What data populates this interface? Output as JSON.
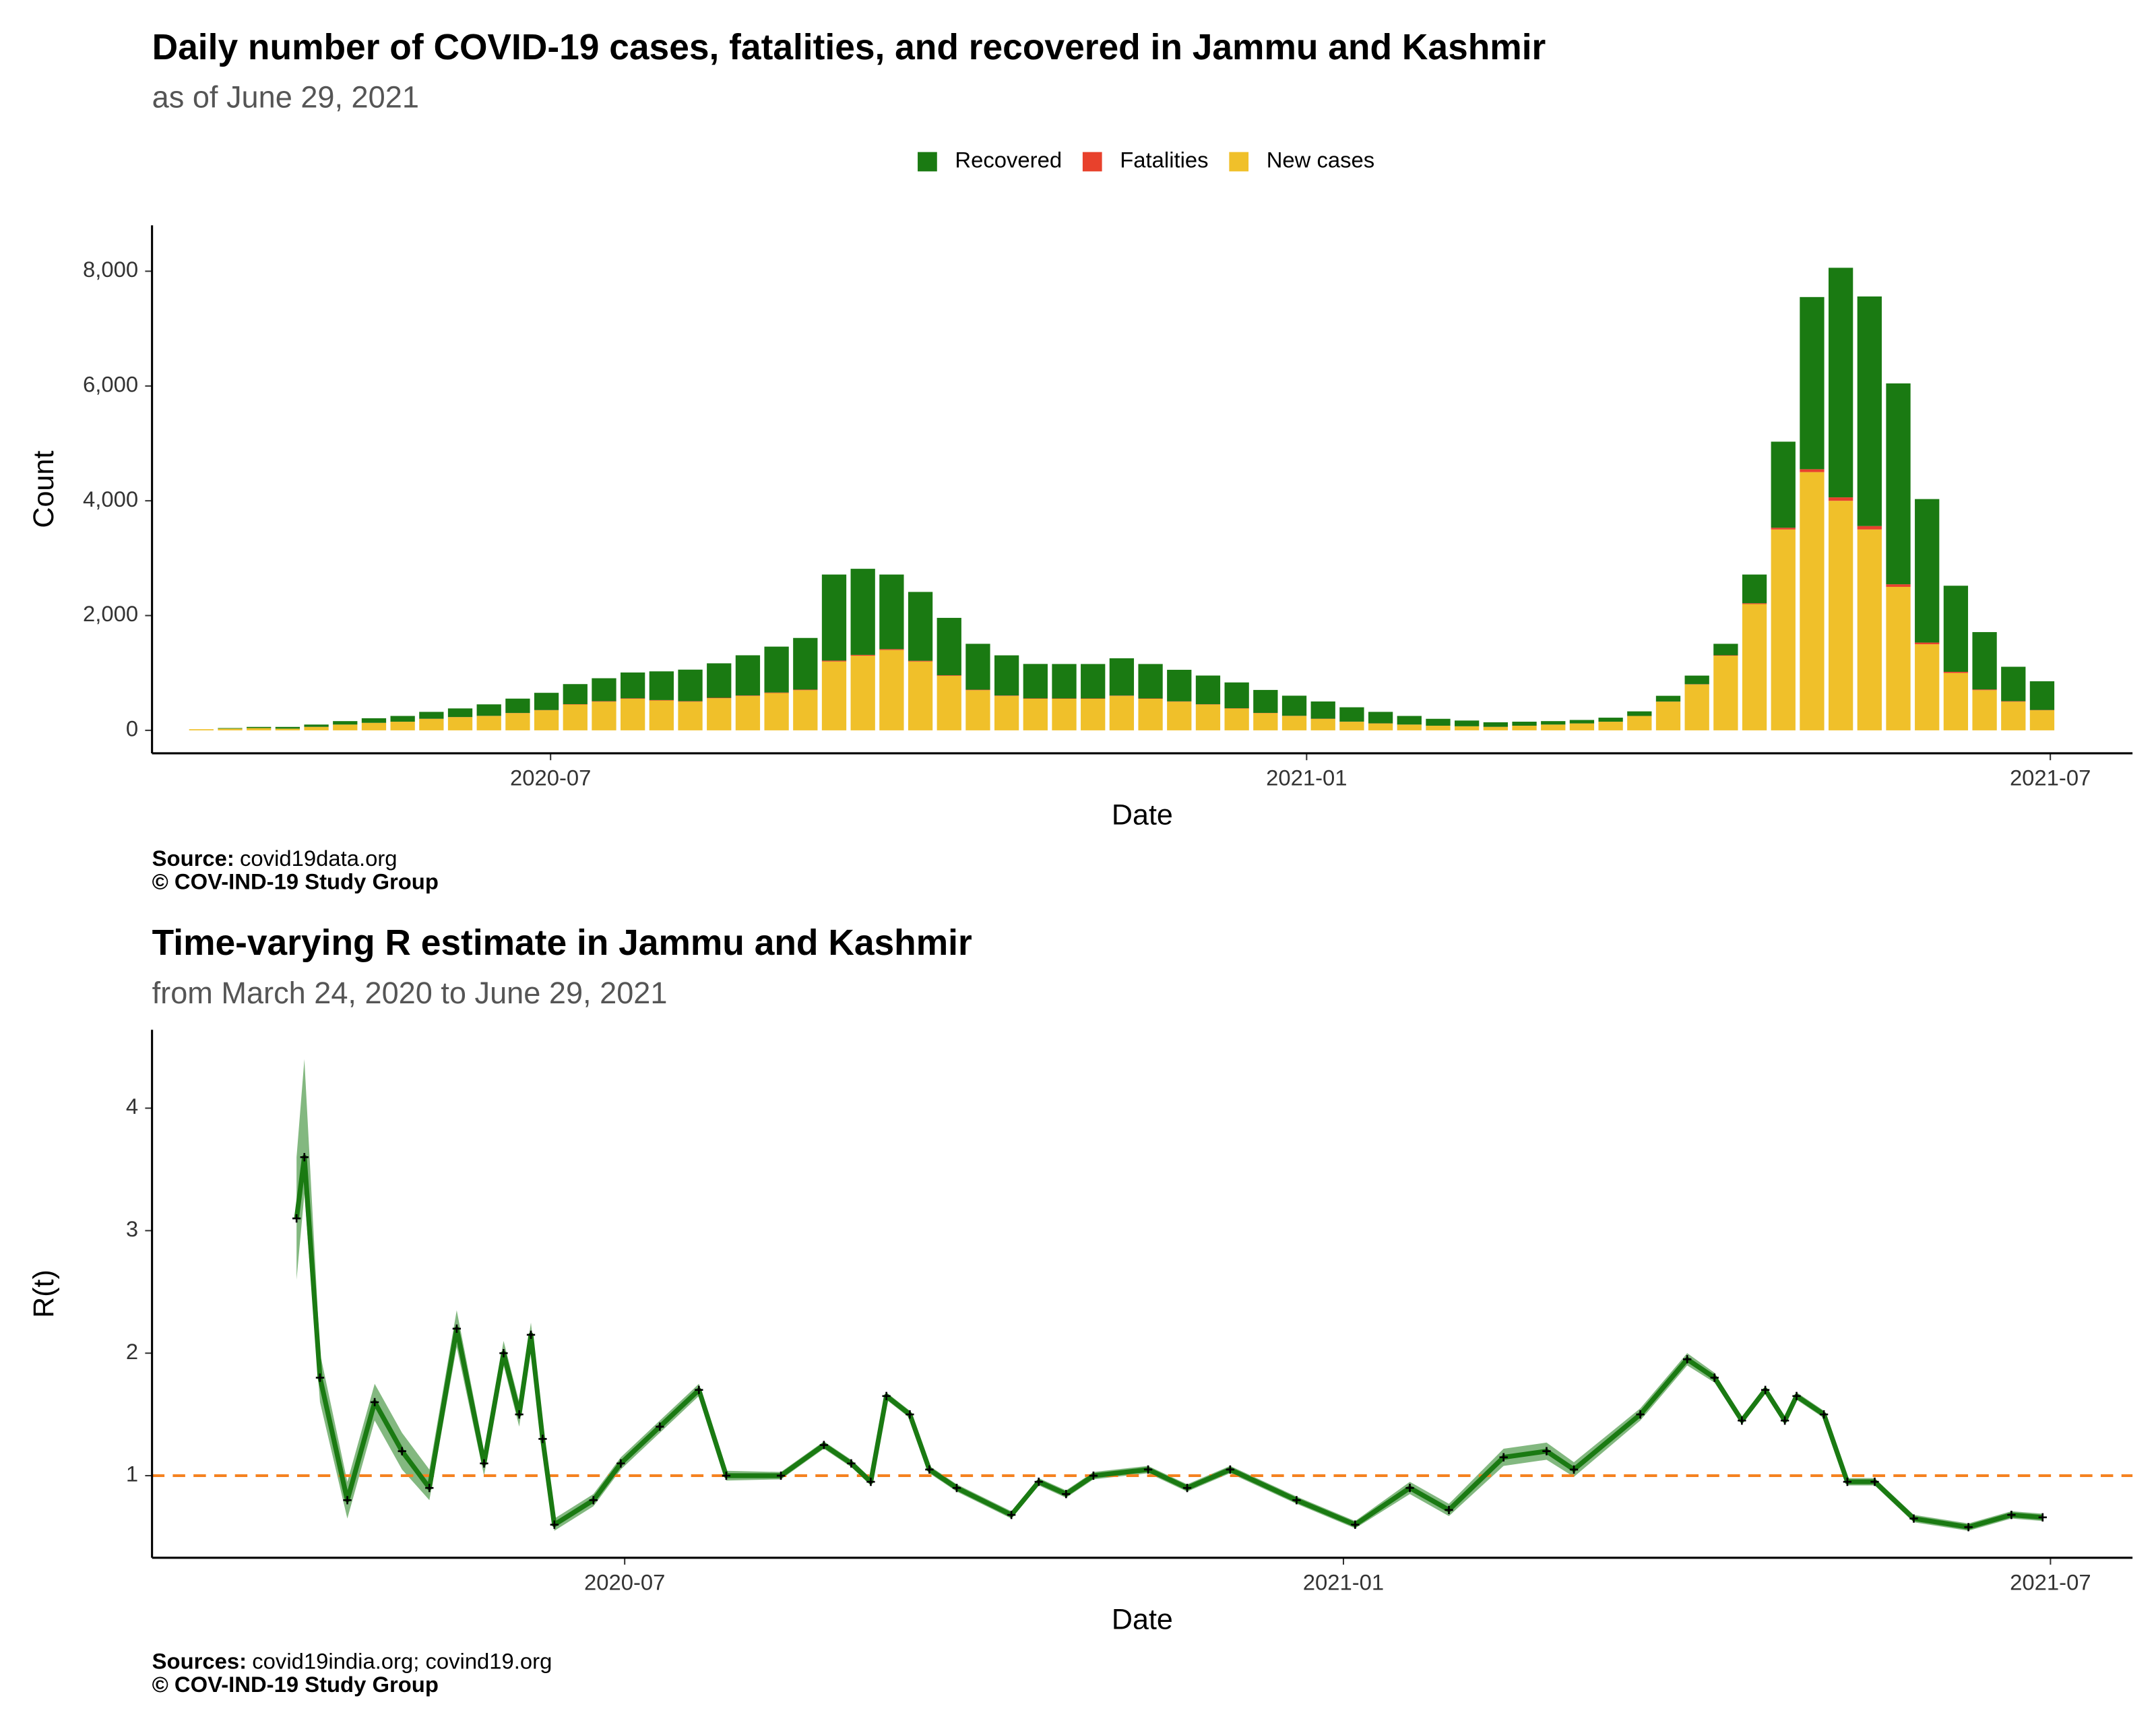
{
  "chart_data": [
    {
      "type": "bar",
      "title": "Daily number of COVID-19 cases, fatalities, and recovered in Jammu and Kashmir",
      "subtitle": "as of June 29, 2021",
      "x_label": "Date",
      "y_label": "Count",
      "source_label": "Source:",
      "source": "covid19data.org",
      "copyright": "© COV-IND-19 Study Group",
      "x": [
        "2020-04-07",
        "2020-04-14",
        "2020-04-21",
        "2020-04-28",
        "2020-05-05",
        "2020-05-12",
        "2020-05-19",
        "2020-05-26",
        "2020-06-02",
        "2020-06-09",
        "2020-06-16",
        "2020-06-23",
        "2020-06-30",
        "2020-07-07",
        "2020-07-14",
        "2020-07-21",
        "2020-07-28",
        "2020-08-04",
        "2020-08-11",
        "2020-08-18",
        "2020-08-25",
        "2020-09-01",
        "2020-09-08",
        "2020-09-15",
        "2020-09-22",
        "2020-09-29",
        "2020-10-06",
        "2020-10-13",
        "2020-10-20",
        "2020-10-27",
        "2020-11-03",
        "2020-11-10",
        "2020-11-17",
        "2020-11-24",
        "2020-12-01",
        "2020-12-08",
        "2020-12-15",
        "2020-12-22",
        "2020-12-29",
        "2021-01-05",
        "2021-01-12",
        "2021-01-19",
        "2021-01-26",
        "2021-02-02",
        "2021-02-09",
        "2021-02-16",
        "2021-02-23",
        "2021-03-02",
        "2021-03-09",
        "2021-03-16",
        "2021-03-23",
        "2021-03-30",
        "2021-04-06",
        "2021-04-13",
        "2021-04-20",
        "2021-04-27",
        "2021-05-04",
        "2021-05-11",
        "2021-05-18",
        "2021-05-25",
        "2021-06-01",
        "2021-06-08",
        "2021-06-15",
        "2021-06-22",
        "2021-06-29"
      ],
      "series": [
        {
          "name": "New cases",
          "color": "#f0c02a",
          "values": [
            20,
            30,
            40,
            30,
            60,
            100,
            130,
            150,
            200,
            230,
            250,
            300,
            350,
            450,
            500,
            550,
            520,
            500,
            560,
            600,
            650,
            700,
            1200,
            1300,
            1400,
            1200,
            950,
            700,
            600,
            550,
            550,
            550,
            600,
            550,
            500,
            450,
            380,
            300,
            250,
            200,
            150,
            120,
            100,
            80,
            70,
            60,
            80,
            100,
            120,
            150,
            250,
            500,
            800,
            1300,
            2200,
            3500,
            4500,
            4000,
            3500,
            2500,
            1500,
            1000,
            700,
            500,
            350
          ]
        },
        {
          "name": "Fatalities",
          "color": "#e8412c",
          "values": [
            0,
            0,
            0,
            0,
            1,
            1,
            1,
            1,
            2,
            2,
            3,
            3,
            4,
            6,
            8,
            8,
            8,
            8,
            8,
            8,
            9,
            10,
            15,
            15,
            15,
            12,
            10,
            8,
            7,
            7,
            6,
            6,
            6,
            6,
            5,
            5,
            5,
            4,
            4,
            3,
            2,
            2,
            1,
            1,
            1,
            1,
            1,
            1,
            1,
            1,
            1,
            2,
            4,
            8,
            15,
            30,
            50,
            60,
            60,
            45,
            30,
            20,
            12,
            8,
            5
          ]
        },
        {
          "name": "Recovered",
          "color": "#1a7a12",
          "values": [
            0,
            10,
            20,
            30,
            40,
            60,
            80,
            100,
            120,
            150,
            200,
            250,
            300,
            350,
            400,
            450,
            500,
            550,
            600,
            700,
            800,
            900,
            1500,
            1500,
            1300,
            1200,
            1000,
            800,
            700,
            600,
            600,
            600,
            650,
            600,
            550,
            500,
            450,
            400,
            350,
            300,
            250,
            200,
            150,
            120,
            100,
            80,
            70,
            60,
            60,
            70,
            80,
            100,
            150,
            200,
            500,
            1500,
            3000,
            4000,
            4000,
            3500,
            2500,
            1500,
            1000,
            600,
            500
          ]
        }
      ],
      "xlim": [
        "2020-03-26",
        "2021-07-21"
      ],
      "xticks": [
        {
          "value": "2020-07-01",
          "label": "2020-07"
        },
        {
          "value": "2021-01-01",
          "label": "2021-01"
        },
        {
          "value": "2021-07-01",
          "label": "2021-07"
        }
      ],
      "ylim": [
        -400,
        8800
      ],
      "yticks": [
        0,
        {
          "value": 2000,
          "label": "2,000"
        },
        {
          "value": 4000,
          "label": "4,000"
        },
        {
          "value": 6000,
          "label": "6,000"
        },
        {
          "value": 8000,
          "label": "8,000"
        }
      ],
      "stacked": true,
      "legend": "top"
    },
    {
      "type": "line",
      "title": "Time-varying R estimate in Jammu and Kashmir",
      "subtitle": "from March 24, 2020 to June 29, 2021",
      "x_label": "Date",
      "y_label": "R(t)",
      "source_label": "Sources:",
      "source": "covid19india.org; covind19.org",
      "copyright": "© COV-IND-19 Study Group",
      "x": [
        "2020-04-08",
        "2020-04-10",
        "2020-04-14",
        "2020-04-21",
        "2020-04-28",
        "2020-05-05",
        "2020-05-12",
        "2020-05-19",
        "2020-05-26",
        "2020-05-31",
        "2020-06-04",
        "2020-06-07",
        "2020-06-10",
        "2020-06-13",
        "2020-06-23",
        "2020-06-30",
        "2020-07-10",
        "2020-07-20",
        "2020-07-27",
        "2020-08-10",
        "2020-08-21",
        "2020-08-28",
        "2020-09-02",
        "2020-09-06",
        "2020-09-12",
        "2020-09-17",
        "2020-09-24",
        "2020-10-08",
        "2020-10-15",
        "2020-10-22",
        "2020-10-29",
        "2020-11-12",
        "2020-11-22",
        "2020-12-03",
        "2020-12-20",
        "2021-01-04",
        "2021-01-18",
        "2021-01-28",
        "2021-02-11",
        "2021-02-22",
        "2021-03-01",
        "2021-03-18",
        "2021-03-30",
        "2021-04-06",
        "2021-04-13",
        "2021-04-19",
        "2021-04-24",
        "2021-04-27",
        "2021-05-04",
        "2021-05-10",
        "2021-05-17",
        "2021-05-27",
        "2021-06-10",
        "2021-06-21",
        "2021-06-29"
      ],
      "series": [
        {
          "color": "#1a7a12",
          "band_color": "#5aa055",
          "values": [
            3.1,
            3.6,
            1.8,
            0.8,
            1.6,
            1.2,
            0.9,
            2.2,
            1.1,
            2.0,
            1.5,
            2.15,
            1.3,
            0.6,
            0.8,
            1.1,
            1.4,
            1.7,
            1.0,
            1.0,
            1.25,
            1.1,
            0.95,
            1.65,
            1.5,
            1.05,
            0.9,
            0.68,
            0.95,
            0.85,
            1.0,
            1.05,
            0.9,
            1.05,
            0.8,
            0.6,
            0.9,
            0.72,
            1.15,
            1.2,
            1.05,
            1.5,
            1.95,
            1.8,
            1.45,
            1.7,
            1.45,
            1.65,
            1.5,
            0.95,
            0.95,
            0.65,
            0.58,
            0.68,
            0.66
          ],
          "lower": [
            2.6,
            3.3,
            1.6,
            0.65,
            1.45,
            1.05,
            0.8,
            2.05,
            1.0,
            1.9,
            1.4,
            2.05,
            1.2,
            0.55,
            0.75,
            1.05,
            1.35,
            1.65,
            0.96,
            0.97,
            1.22,
            1.07,
            0.92,
            1.62,
            1.47,
            1.02,
            0.87,
            0.65,
            0.92,
            0.82,
            0.97,
            1.02,
            0.87,
            1.02,
            0.77,
            0.57,
            0.85,
            0.67,
            1.08,
            1.13,
            0.99,
            1.45,
            1.9,
            1.76,
            1.42,
            1.67,
            1.42,
            1.62,
            1.47,
            0.92,
            0.92,
            0.62,
            0.55,
            0.65,
            0.63
          ],
          "upper": [
            3.6,
            4.4,
            2.0,
            0.95,
            1.75,
            1.35,
            1.05,
            2.35,
            1.2,
            2.1,
            1.6,
            2.25,
            1.4,
            0.65,
            0.85,
            1.15,
            1.45,
            1.75,
            1.04,
            1.03,
            1.28,
            1.13,
            0.98,
            1.68,
            1.53,
            1.08,
            0.93,
            0.71,
            0.98,
            0.88,
            1.03,
            1.08,
            0.93,
            1.08,
            0.83,
            0.63,
            0.95,
            0.77,
            1.22,
            1.27,
            1.11,
            1.55,
            2.0,
            1.84,
            1.48,
            1.73,
            1.48,
            1.68,
            1.53,
            0.98,
            0.98,
            0.68,
            0.61,
            0.71,
            0.69
          ]
        }
      ],
      "hline": 1,
      "hline_color": "#f58220",
      "xlim": [
        "2020-03-02",
        "2021-07-22"
      ],
      "xticks": [
        {
          "value": "2020-07-01",
          "label": "2020-07"
        },
        {
          "value": "2021-01-01",
          "label": "2021-01"
        },
        {
          "value": "2021-07-01",
          "label": "2021-07"
        }
      ],
      "ylim": [
        0.33,
        4.64
      ],
      "yticks": [
        1,
        2,
        3,
        4
      ]
    }
  ]
}
